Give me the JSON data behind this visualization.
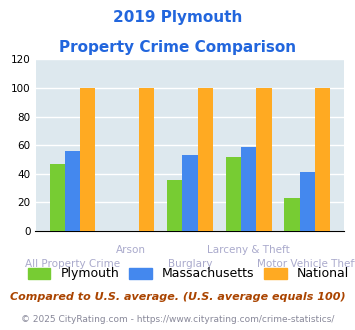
{
  "title_line1": "2019 Plymouth",
  "title_line2": "Property Crime Comparison",
  "categories": [
    "All Property Crime",
    "Arson",
    "Burglary",
    "Larceny & Theft",
    "Motor Vehicle Theft"
  ],
  "plymouth": [
    47,
    0,
    36,
    52,
    23
  ],
  "massachusetts": [
    56,
    0,
    53,
    59,
    41
  ],
  "national": [
    100,
    100,
    100,
    100,
    100
  ],
  "bar_colors": {
    "plymouth": "#77cc33",
    "massachusetts": "#4488ee",
    "national": "#ffaa22"
  },
  "ylim": [
    0,
    120
  ],
  "yticks": [
    0,
    20,
    40,
    60,
    80,
    100,
    120
  ],
  "xlabel_color": "#aaaacc",
  "title_color": "#2266dd",
  "bg_color": "#dde8ee",
  "grid_color": "#ffffff",
  "footnote1": "Compared to U.S. average. (U.S. average equals 100)",
  "footnote2": "© 2025 CityRating.com - https://www.cityrating.com/crime-statistics/",
  "footnote1_color": "#aa4400",
  "footnote1_fontsize": 8.0,
  "footnote2_color": "#888899",
  "footnote2_fontsize": 6.5,
  "legend_fontsize": 9.0,
  "title_fontsize": 11
}
